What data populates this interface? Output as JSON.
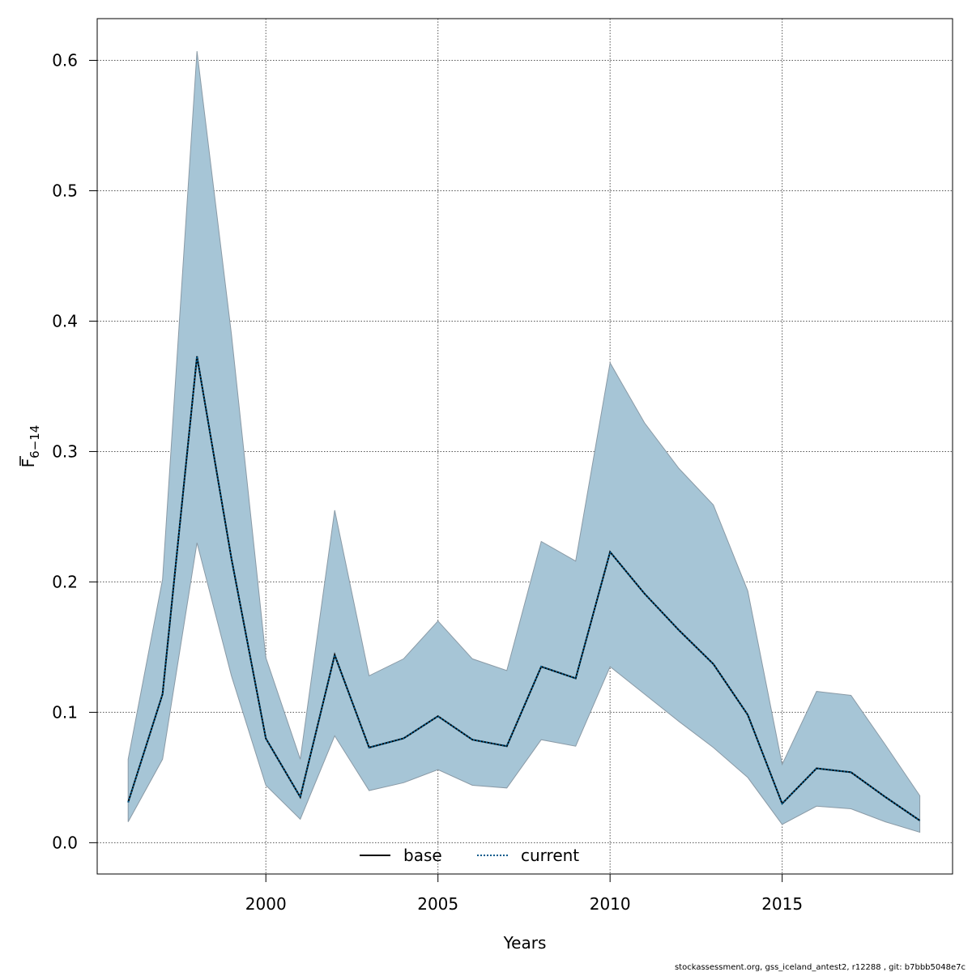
{
  "chart_data": {
    "type": "line",
    "title": "",
    "xlabel": "Years",
    "ylabel": {
      "main": "F",
      "subscript": "6−14",
      "overline": true
    },
    "xlim": [
      1995.1,
      2019.95
    ],
    "ylim": [
      -0.024,
      0.632
    ],
    "xticks": [
      2000,
      2005,
      2010,
      2015
    ],
    "xtick_labels": [
      "2000",
      "2005",
      "2010",
      "2015"
    ],
    "yticks": [
      0.0,
      0.1,
      0.2,
      0.3,
      0.4,
      0.5,
      0.6
    ],
    "ytick_labels": [
      "0.0",
      "0.1",
      "0.2",
      "0.3",
      "0.4",
      "0.5",
      "0.6"
    ],
    "grid": true,
    "legend_position": "bottom",
    "x": [
      1996,
      1997,
      1998,
      1999,
      2000,
      2001,
      2002,
      2003,
      2004,
      2005,
      2006,
      2007,
      2008,
      2009,
      2010,
      2011,
      2012,
      2013,
      2014,
      2015,
      2016,
      2017,
      2018,
      2019
    ],
    "band": {
      "color": "#a6c5d6",
      "edge_color": "#8a9aa6",
      "lower": [
        0.016,
        0.064,
        0.23,
        0.128,
        0.044,
        0.018,
        0.082,
        0.04,
        0.046,
        0.056,
        0.044,
        0.042,
        0.079,
        0.074,
        0.135,
        0.114,
        0.093,
        0.073,
        0.05,
        0.014,
        0.028,
        0.026,
        0.016,
        0.008
      ],
      "upper": [
        0.064,
        0.202,
        0.607,
        0.39,
        0.142,
        0.064,
        0.255,
        0.128,
        0.141,
        0.17,
        0.141,
        0.132,
        0.231,
        0.216,
        0.368,
        0.322,
        0.287,
        0.259,
        0.193,
        0.06,
        0.116,
        0.113,
        0.075,
        0.036
      ]
    },
    "series": [
      {
        "name": "base",
        "color": "#000000",
        "dash": "solid",
        "values": [
          0.031,
          0.114,
          0.373,
          0.218,
          0.08,
          0.035,
          0.144,
          0.073,
          0.08,
          0.097,
          0.079,
          0.074,
          0.135,
          0.126,
          0.223,
          0.191,
          0.163,
          0.137,
          0.098,
          0.03,
          0.057,
          0.054,
          0.035,
          0.017
        ]
      },
      {
        "name": "current",
        "color": "#005b8c",
        "dash": "dotted",
        "values": [
          0.031,
          0.114,
          0.373,
          0.218,
          0.08,
          0.035,
          0.144,
          0.073,
          0.08,
          0.097,
          0.079,
          0.074,
          0.135,
          0.126,
          0.223,
          0.191,
          0.163,
          0.137,
          0.098,
          0.03,
          0.057,
          0.054,
          0.035,
          0.017
        ]
      }
    ]
  },
  "footer": "stockassessment.org, gss_iceland_antest2, r12288 , git: b7bbb5048e7c"
}
